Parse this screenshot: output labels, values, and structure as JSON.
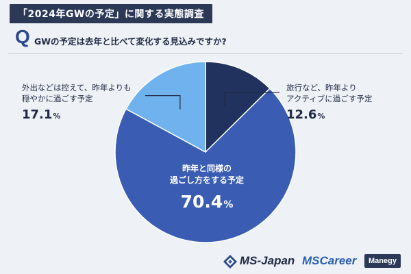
{
  "header": {
    "title": "「2024年GWの予定」に関する実態調査"
  },
  "question": {
    "mark": "Q",
    "text": "GWの予定は去年と比べて変化する見込みですか?"
  },
  "chart_data": {
    "type": "pie",
    "start_angle_deg": 0,
    "direction": "clockwise",
    "slices": [
      {
        "label_lines": [
          "旅行など、昨年より",
          "アクティブに過ごす予定"
        ],
        "value": 12.6,
        "color": "#21325e"
      },
      {
        "label_lines": [
          "昨年と同様の",
          "過ごし方をする予定"
        ],
        "value": 70.4,
        "color": "#3a5db3"
      },
      {
        "label_lines": [
          "外出などは控えて、昨年よりも",
          "穏やかに過ごす予定"
        ],
        "value": 17.1,
        "color": "#6fb2ee"
      }
    ],
    "percent_suffix": "%"
  },
  "footer": {
    "logo_left": "MS-Japan",
    "logo_mid": "MSCareer",
    "logo_right": "Manegy"
  }
}
